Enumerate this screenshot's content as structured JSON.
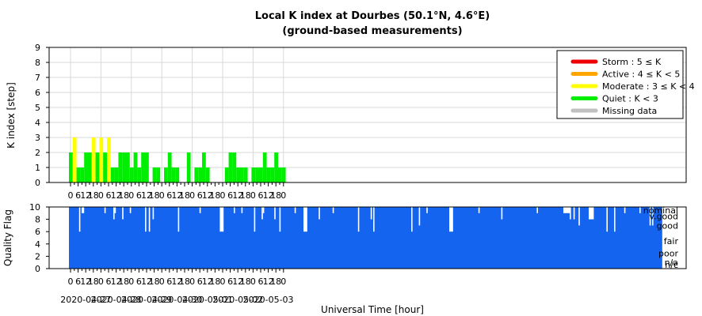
{
  "chart_data": [
    {
      "type": "bar",
      "title": "Local K index at Dourbes (50.1°N, 4.6°E)",
      "subtitle": "(ground-based measurements)",
      "ylabel": "K index [step]",
      "ylim": [
        0,
        9
      ],
      "yticks": [
        0,
        1,
        2,
        3,
        4,
        5,
        6,
        7,
        8,
        9
      ],
      "grid": true,
      "legend_placement": "top-right",
      "x_tick_labels": [
        "0",
        "6",
        "12",
        "18",
        "0",
        "6",
        "12",
        "18",
        "0",
        "6",
        "12",
        "18",
        "0",
        "6",
        "12",
        "18",
        "0",
        "6",
        "12",
        "18",
        "0",
        "6",
        "12",
        "18",
        "0",
        "6",
        "12",
        "18",
        "0"
      ],
      "legend": [
        {
          "label": "Storm : 5 ≤ K",
          "color": "#ee0000"
        },
        {
          "label": "Active : 4 ≤ K < 5",
          "color": "#ffa500"
        },
        {
          "label": "Moderate : 3 ≤ K < 4",
          "color": "#ffff00"
        },
        {
          "label": "Quiet : K < 3",
          "color": "#00ee00"
        },
        {
          "label": "Missing data",
          "color": "#c0c0c0"
        }
      ],
      "x_unit": "3-hour interval starting 2020-04-27 00:00 UT",
      "values": [
        2,
        3,
        1,
        1,
        2,
        2,
        3,
        2,
        3,
        2,
        3,
        1,
        1,
        2,
        2,
        2,
        1,
        2,
        1,
        2,
        2,
        0,
        1,
        1,
        0,
        1,
        2,
        1,
        1,
        0,
        0,
        2,
        0,
        1,
        1,
        2,
        1,
        0,
        0,
        0,
        0,
        1,
        2,
        2,
        1,
        1,
        1,
        0,
        1,
        1,
        1,
        2,
        1,
        1,
        2,
        1,
        1,
        0,
        0,
        0,
        0,
        0,
        0,
        0
      ]
    },
    {
      "type": "bar",
      "ylabel": "Quality Flag",
      "ylim": [
        0,
        10
      ],
      "yticks": [
        0,
        2,
        4,
        6,
        8,
        10
      ],
      "quality_labels": [
        {
          "label": "nominal",
          "value": 10
        },
        {
          "label": "v.good",
          "value": 8.5
        },
        {
          "label": "good",
          "value": 7
        },
        {
          "label": "fair",
          "value": 4.5
        },
        {
          "label": "poor",
          "value": 2.5
        },
        {
          "label": "n/a",
          "value": 1
        },
        {
          "label": "n/c",
          "value": 0
        }
      ],
      "color": "#1464f0",
      "xlabel": "Universal Time [hour]",
      "x_tick_labels": [
        "0",
        "6",
        "12",
        "18",
        "0",
        "6",
        "12",
        "18",
        "0",
        "6",
        "12",
        "18",
        "0",
        "6",
        "12",
        "18",
        "0",
        "6",
        "12",
        "18",
        "0",
        "6",
        "12",
        "18",
        "0",
        "6",
        "12",
        "18",
        "0"
      ],
      "date_labels": [
        "2020-04-27",
        "2020-04-28",
        "2020-04-29",
        "2020-04-30",
        "2020-05-01",
        "2020-05-02",
        "2020-05-03"
      ],
      "dips_hours": [
        [
          8,
          6
        ],
        [
          28,
          9
        ],
        [
          35,
          8
        ],
        [
          36,
          9
        ],
        [
          42,
          8
        ],
        [
          48,
          9
        ],
        [
          60,
          6
        ],
        [
          63,
          6
        ],
        [
          66,
          8
        ],
        [
          86,
          6
        ],
        [
          103,
          9
        ],
        [
          130,
          9
        ],
        [
          136,
          9
        ],
        [
          146,
          6
        ],
        [
          152,
          8
        ],
        [
          153,
          9
        ],
        [
          162,
          8
        ],
        [
          166,
          6
        ],
        [
          178,
          9
        ],
        [
          197,
          8
        ],
        [
          208,
          9
        ],
        [
          228,
          6
        ],
        [
          238,
          8
        ],
        [
          240,
          6
        ],
        [
          270,
          6
        ],
        [
          276,
          7
        ],
        [
          282,
          9
        ],
        [
          323,
          9
        ],
        [
          341,
          8
        ],
        [
          369,
          9
        ],
        [
          395,
          8
        ],
        [
          398,
          8
        ],
        [
          402,
          7
        ],
        [
          424,
          6
        ],
        [
          430,
          6
        ],
        [
          438,
          9
        ],
        [
          450,
          9
        ],
        [
          458,
          7
        ],
        [
          460,
          7
        ]
      ],
      "gaps_hours": [
        [
          119,
          122,
          6
        ],
        [
          185,
          188,
          6
        ],
        [
          300,
          303,
          6
        ]
      ],
      "notches_hours": [
        [
          10,
          12,
          9
        ],
        [
          390,
          395,
          9
        ],
        [
          410,
          414,
          8
        ]
      ],
      "max_hour": 468
    }
  ]
}
